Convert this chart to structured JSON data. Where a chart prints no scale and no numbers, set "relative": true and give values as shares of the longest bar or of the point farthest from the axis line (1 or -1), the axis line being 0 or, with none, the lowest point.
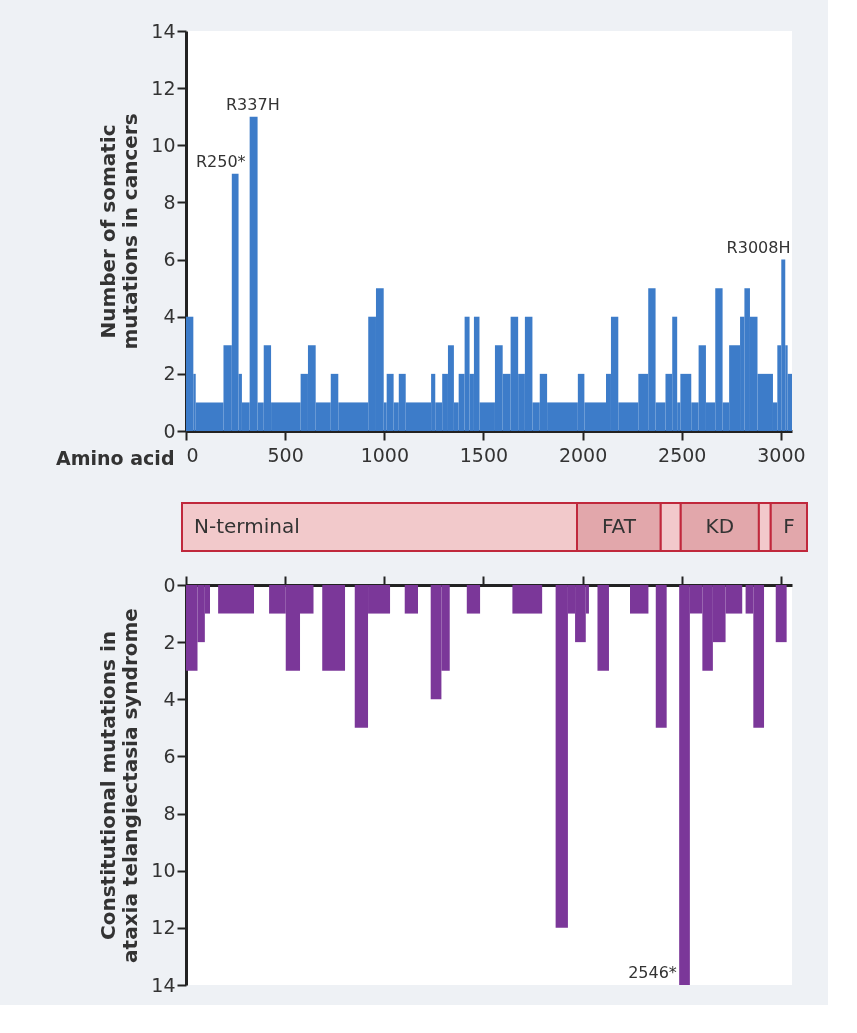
{
  "chart_data": [
    {
      "type": "histogram",
      "ylabel": "Number of somatic mutations in cancers",
      "xlabel": "Amino acid",
      "color": "#3d7cc9",
      "bins": [
        0,
        37,
        49,
        189,
        231,
        265,
        282,
        321,
        361,
        392,
        429,
        578,
        615,
        654,
        730,
        768,
        919,
        958,
        997,
        1012,
        1047,
        1073,
        1108,
        1236,
        1257,
        1292,
        1321,
        1351,
        1375,
        1405,
        1430,
        1452,
        1480,
        1558,
        1597,
        1637,
        1675,
        1709,
        1747,
        1784,
        1821,
        1976,
        2009,
        2118,
        2143,
        2180,
        2281,
        2331,
        2368,
        2418,
        2452,
        2477,
        2493,
        2548,
        2585,
        2622,
        2669,
        2706,
        2739,
        2794,
        2816,
        2844,
        2882,
        2960,
        2982,
        3002,
        3022,
        3034,
        3056
      ],
      "values": [
        4,
        2,
        1,
        3,
        9,
        2,
        1,
        11,
        1,
        3,
        1,
        2,
        3,
        1,
        2,
        1,
        4,
        5,
        1,
        2,
        1,
        2,
        1,
        2,
        1,
        2,
        3,
        1,
        2,
        4,
        2,
        4,
        1,
        3,
        2,
        4,
        2,
        4,
        1,
        2,
        1,
        2,
        1,
        2,
        4,
        1,
        2,
        5,
        1,
        2,
        4,
        1,
        2,
        1,
        3,
        1,
        5,
        1,
        3,
        4,
        5,
        4,
        2,
        1,
        3,
        6,
        3,
        2
      ],
      "xlim": [
        0,
        3056
      ],
      "xticks": [
        0,
        500,
        1000,
        1500,
        2000,
        2500,
        3000
      ],
      "ylim": [
        0,
        14
      ],
      "yticks": [
        0,
        2,
        4,
        6,
        8,
        10,
        12,
        14
      ],
      "annotations": [
        {
          "text": "R250*",
          "x": 250,
          "y": 9
        },
        {
          "text": "R337H",
          "x": 337,
          "y": 11
        },
        {
          "text": "R3008H",
          "x": 3008,
          "y": 6
        }
      ]
    },
    {
      "type": "bar",
      "orientation": "horizontal",
      "stacked": true,
      "relative": true,
      "categories": [
        null
      ],
      "series": [
        {
          "name": "N-terminal",
          "color": "#f2c9cb",
          "values": [
            0.632
          ]
        },
        {
          "name": "FAT",
          "color": "#e2a7ab",
          "values": [
            0.134
          ]
        },
        {
          "color": "#f2c9cb",
          "values": [
            0.032
          ]
        },
        {
          "name": "KD",
          "color": "#e2a7ab",
          "values": [
            0.125
          ]
        },
        {
          "color": "#f2c9cb",
          "values": [
            0.019
          ]
        },
        {
          "name": "F",
          "color": "#e2a7ab",
          "values": [
            0.058
          ]
        }
      ]
    },
    {
      "type": "histogram",
      "ylabel": "Constitutional mutations in ataxia telangiectasia syndrome",
      "color": "#7b3799",
      "bins": [
        0,
        58,
        95,
        121,
        162,
        343,
        419,
        503,
        575,
        643,
        687,
        802,
        851,
        918,
        1029,
        1103,
        1170,
        1234,
        1288,
        1330,
        1416,
        1483,
        1646,
        1796,
        1864,
        1926,
        1962,
        2016,
        2032,
        2075,
        2133,
        2239,
        2332,
        2369,
        2424,
        2487,
        2541,
        2604,
        2657,
        2721,
        2805,
        2822,
        2861,
        2915,
        2974,
        3029
      ],
      "values": [
        3,
        2,
        1,
        0,
        1,
        0,
        1,
        3,
        1,
        0,
        3,
        0,
        5,
        1,
        0,
        1,
        0,
        4,
        3,
        0,
        1,
        0,
        1,
        0,
        12,
        1,
        2,
        1,
        0,
        3,
        0,
        1,
        0,
        5,
        0,
        14,
        1,
        3,
        2,
        1,
        0,
        1,
        5,
        0,
        2
      ],
      "xlim": [
        0,
        3056
      ],
      "xticks": [
        {
          "value": 0,
          "label": null
        },
        {
          "value": 500,
          "label": null
        },
        {
          "value": 1000,
          "label": null
        },
        {
          "value": 1500,
          "label": null
        },
        {
          "value": 2000,
          "label": null
        },
        {
          "value": 2500,
          "label": null
        },
        {
          "value": 3000,
          "label": null
        }
      ],
      "ylim": [
        14,
        0
      ],
      "yticks": [
        0,
        2,
        4,
        6,
        8,
        10,
        12,
        14
      ],
      "tick_labels": "y",
      "annotations": [
        {
          "text": "2546*",
          "x": 2546,
          "y": 14
        }
      ]
    }
  ]
}
